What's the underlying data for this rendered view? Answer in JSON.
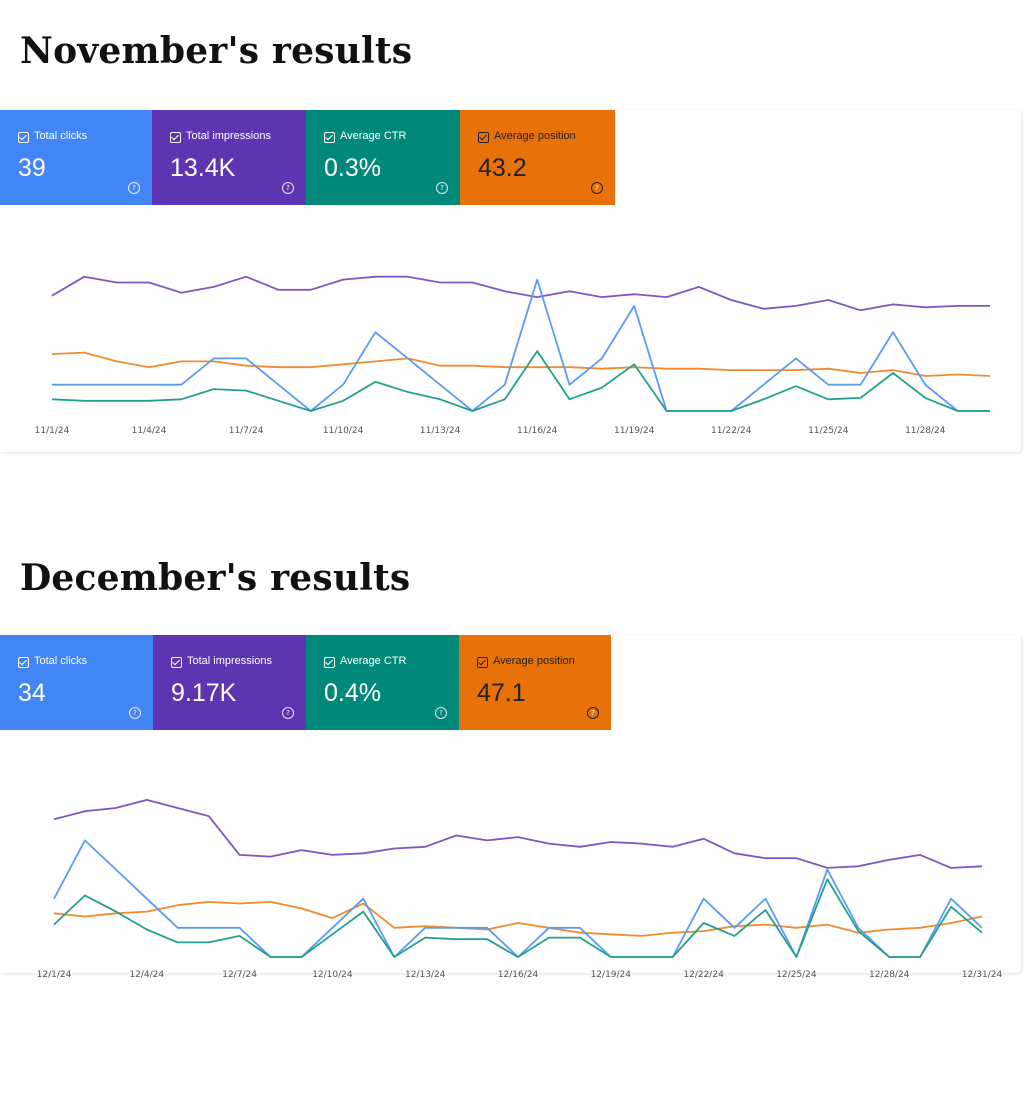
{
  "sections": [
    {
      "title": "November's results",
      "cards": [
        {
          "label": "Total clicks",
          "value": "39",
          "color": "#4285f4"
        },
        {
          "label": "Total impressions",
          "value": "13.4K",
          "color": "#5e35b1"
        },
        {
          "label": "Average CTR",
          "value": "0.3%",
          "color": "#00897b"
        },
        {
          "label": "Average position",
          "value": "43.2",
          "color": "#e8710a"
        }
      ]
    },
    {
      "title": "December's results",
      "cards": [
        {
          "label": "Total clicks",
          "value": "34",
          "color": "#4285f4"
        },
        {
          "label": "Total impressions",
          "value": "9.17K",
          "color": "#5e35b1"
        },
        {
          "label": "Average CTR",
          "value": "0.4%",
          "color": "#00897b"
        },
        {
          "label": "Average position",
          "value": "47.1",
          "color": "#e8710a"
        }
      ]
    }
  ],
  "chart_data": [
    {
      "type": "line",
      "title": "November's results",
      "x": [
        "11/1/24",
        "11/2/24",
        "11/3/24",
        "11/4/24",
        "11/5/24",
        "11/6/24",
        "11/7/24",
        "11/8/24",
        "11/9/24",
        "11/10/24",
        "11/11/24",
        "11/12/24",
        "11/13/24",
        "11/14/24",
        "11/15/24",
        "11/16/24",
        "11/17/24",
        "11/18/24",
        "11/19/24",
        "11/20/24",
        "11/21/24",
        "11/22/24",
        "11/23/24",
        "11/24/24",
        "11/25/24",
        "11/26/24",
        "11/27/24",
        "11/28/24",
        "11/29/24",
        "11/30/24"
      ],
      "x_tick_labels": [
        "11/1/24",
        "11/4/24",
        "11/7/24",
        "11/10/24",
        "11/13/24",
        "11/16/24",
        "11/19/24",
        "11/22/24",
        "11/25/24",
        "11/28/24"
      ],
      "grid": false,
      "series": [
        {
          "name": "Total impressions",
          "color": "#7e57c2",
          "ylim": [
            0,
            1
          ],
          "values": [
            0.79,
            0.92,
            0.88,
            0.88,
            0.81,
            0.85,
            0.92,
            0.83,
            0.83,
            0.9,
            0.92,
            0.92,
            0.88,
            0.88,
            0.82,
            0.78,
            0.82,
            0.78,
            0.8,
            0.78,
            0.85,
            0.76,
            0.7,
            0.72,
            0.76,
            0.69,
            0.73,
            0.71,
            0.72,
            0.72
          ]
        },
        {
          "name": "Average position",
          "color": "#f28b30",
          "ylim": [
            0,
            1
          ],
          "values": [
            0.39,
            0.4,
            0.34,
            0.3,
            0.34,
            0.34,
            0.31,
            0.3,
            0.3,
            0.32,
            0.34,
            0.36,
            0.31,
            0.31,
            0.3,
            0.3,
            0.3,
            0.29,
            0.3,
            0.29,
            0.29,
            0.28,
            0.28,
            0.28,
            0.29,
            0.26,
            0.28,
            0.24,
            0.25,
            0.24
          ]
        },
        {
          "name": "Total clicks",
          "color": "#5b9cf2",
          "ylim": [
            0,
            1
          ],
          "values": [
            0.18,
            0.18,
            0.18,
            0.18,
            0.18,
            0.36,
            0.36,
            0.18,
            0.0,
            0.18,
            0.54,
            0.36,
            0.18,
            0.0,
            0.18,
            0.9,
            0.18,
            0.36,
            0.72,
            0.0,
            0.0,
            0.0,
            0.18,
            0.36,
            0.18,
            0.18,
            0.54,
            0.18,
            0.0,
            0.0
          ]
        },
        {
          "name": "Average CTR",
          "color": "#26a08c",
          "ylim": [
            0,
            1
          ],
          "values": [
            0.08,
            0.07,
            0.07,
            0.07,
            0.08,
            0.15,
            0.14,
            0.07,
            0.0,
            0.07,
            0.2,
            0.13,
            0.08,
            0.0,
            0.08,
            0.41,
            0.08,
            0.16,
            0.32,
            0.0,
            0.0,
            0.0,
            0.08,
            0.17,
            0.08,
            0.09,
            0.26,
            0.09,
            0.0,
            0.0
          ]
        }
      ]
    },
    {
      "type": "line",
      "title": "December's results",
      "x": [
        "12/1/24",
        "12/2/24",
        "12/3/24",
        "12/4/24",
        "12/5/24",
        "12/6/24",
        "12/7/24",
        "12/8/24",
        "12/9/24",
        "12/10/24",
        "12/11/24",
        "12/12/24",
        "12/13/24",
        "12/14/24",
        "12/15/24",
        "12/16/24",
        "12/17/24",
        "12/18/24",
        "12/19/24",
        "12/20/24",
        "12/21/24",
        "12/22/24",
        "12/23/24",
        "12/24/24",
        "12/25/24",
        "12/26/24",
        "12/27/24",
        "12/28/24",
        "12/29/24",
        "12/30/24",
        "12/31/24"
      ],
      "x_tick_labels": [
        "12/1/24",
        "12/4/24",
        "12/7/24",
        "12/10/24",
        "12/13/24",
        "12/16/24",
        "12/19/24",
        "12/22/24",
        "12/25/24",
        "12/28/24",
        "12/31/24"
      ],
      "grid": false,
      "series": [
        {
          "name": "Total impressions",
          "color": "#7e57c2",
          "ylim": [
            0,
            1
          ],
          "values": [
            0.85,
            0.9,
            0.92,
            0.97,
            0.92,
            0.87,
            0.63,
            0.62,
            0.66,
            0.63,
            0.64,
            0.67,
            0.68,
            0.75,
            0.72,
            0.74,
            0.7,
            0.68,
            0.71,
            0.7,
            0.68,
            0.73,
            0.64,
            0.61,
            0.61,
            0.55,
            0.56,
            0.6,
            0.63,
            0.55,
            0.56
          ]
        },
        {
          "name": "Average position",
          "color": "#f28b30",
          "ylim": [
            0,
            1
          ],
          "values": [
            0.27,
            0.25,
            0.27,
            0.28,
            0.32,
            0.34,
            0.33,
            0.34,
            0.3,
            0.24,
            0.33,
            0.18,
            0.19,
            0.18,
            0.17,
            0.21,
            0.18,
            0.15,
            0.14,
            0.13,
            0.15,
            0.16,
            0.19,
            0.2,
            0.18,
            0.2,
            0.15,
            0.17,
            0.18,
            0.21,
            0.25
          ]
        },
        {
          "name": "Total clicks",
          "color": "#5b9cf2",
          "ylim": [
            0,
            1
          ],
          "values": [
            0.36,
            0.72,
            0.54,
            0.36,
            0.18,
            0.18,
            0.18,
            0.0,
            0.0,
            0.18,
            0.36,
            0.0,
            0.18,
            0.18,
            0.18,
            0.0,
            0.18,
            0.18,
            0.0,
            0.0,
            0.0,
            0.36,
            0.18,
            0.36,
            0.0,
            0.54,
            0.18,
            0.0,
            0.0,
            0.36,
            0.18
          ]
        },
        {
          "name": "Average CTR",
          "color": "#26a08c",
          "ylim": [
            0,
            1
          ],
          "values": [
            0.2,
            0.38,
            0.28,
            0.17,
            0.09,
            0.09,
            0.13,
            0.0,
            0.0,
            0.14,
            0.28,
            0.0,
            0.12,
            0.11,
            0.11,
            0.0,
            0.12,
            0.12,
            0.0,
            0.0,
            0.0,
            0.21,
            0.13,
            0.29,
            0.0,
            0.48,
            0.16,
            0.0,
            0.0,
            0.31,
            0.15
          ]
        }
      ]
    }
  ]
}
